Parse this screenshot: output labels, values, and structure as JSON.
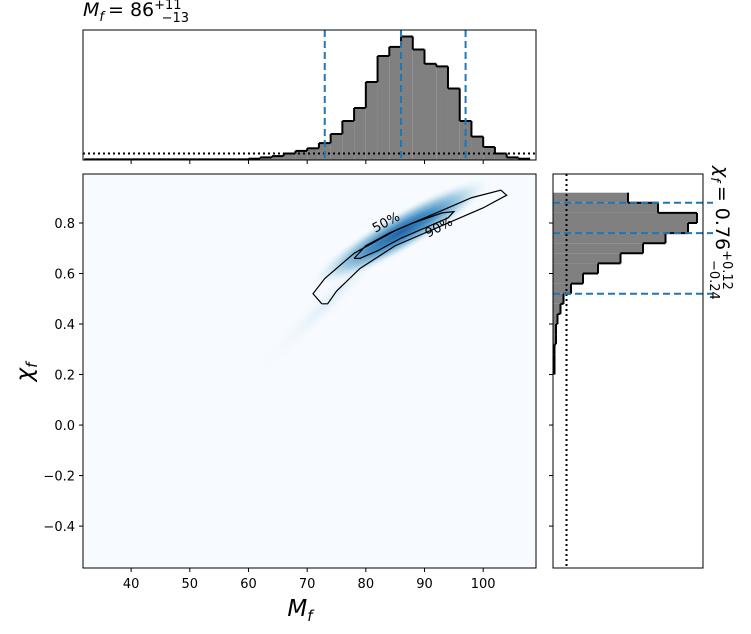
{
  "chart_data": [
    {
      "type": "histogram",
      "orientation": "vertical",
      "title": {
        "symbol": "M",
        "subscript": "f",
        "value": "= 86",
        "upper": "+11",
        "lower": "−13"
      },
      "bins": [
        32,
        34,
        36,
        38,
        40,
        42,
        44,
        46,
        48,
        50,
        52,
        54,
        56,
        58,
        60,
        62,
        64,
        66,
        68,
        70,
        72,
        74,
        76,
        78,
        80,
        82,
        84,
        86,
        88,
        90,
        92,
        94,
        96,
        98,
        100,
        102,
        104,
        106,
        108
      ],
      "values": [
        0.005,
        0.005,
        0.005,
        0.005,
        0.005,
        0.005,
        0.005,
        0.005,
        0.005,
        0.005,
        0.005,
        0.005,
        0.005,
        0.005,
        0.01,
        0.02,
        0.03,
        0.05,
        0.07,
        0.09,
        0.13,
        0.2,
        0.3,
        0.4,
        0.6,
        0.8,
        0.87,
        0.95,
        0.85,
        0.74,
        0.72,
        0.55,
        0.3,
        0.18,
        0.1,
        0.05,
        0.02,
        0.01
      ],
      "color": "#808080",
      "quantiles": [
        73,
        86,
        97
      ],
      "quantile_color": "#1f77b4",
      "prior_level": 0.05,
      "xlim": [
        31.8,
        109
      ],
      "xticks": [
        40,
        50,
        60,
        70,
        80,
        90,
        100
      ],
      "ylim": [
        0,
        1
      ]
    },
    {
      "type": "contour",
      "xlabel": {
        "symbol": "M",
        "subscript": "f"
      },
      "ylabel": {
        "symbol": "χ",
        "subscript": "f"
      },
      "xlim": [
        31.8,
        109
      ],
      "ylim": [
        -0.566,
        0.994
      ],
      "xticks": [
        40,
        50,
        60,
        70,
        80,
        90,
        100
      ],
      "yticks": [
        {
          "value": -0.4,
          "label": "−0.4"
        },
        {
          "value": -0.2,
          "label": "−0.2"
        },
        {
          "value": 0,
          "label": "0.0"
        },
        0.2,
        0.4,
        0.6,
        0.8
      ],
      "contours": [
        {
          "label": "90%",
          "label_x": 92.5,
          "label_y": 0.78,
          "x": [
            72.5,
            71,
            73,
            78,
            85,
            92,
            98,
            103,
            104,
            100,
            93,
            85,
            79,
            75,
            73.5,
            72.5
          ],
          "y": [
            0.48,
            0.52,
            0.58,
            0.68,
            0.77,
            0.84,
            0.9,
            0.93,
            0.91,
            0.86,
            0.79,
            0.71,
            0.62,
            0.53,
            0.48,
            0.48
          ]
        },
        {
          "label": "50%",
          "label_x": 83.5,
          "label_y": 0.8,
          "x": [
            78,
            80,
            84,
            88,
            93,
            95,
            94,
            90,
            86,
            82,
            79,
            78
          ],
          "y": [
            0.66,
            0.71,
            0.76,
            0.8,
            0.84,
            0.845,
            0.82,
            0.78,
            0.74,
            0.69,
            0.66,
            0.66
          ]
        }
      ]
    },
    {
      "type": "histogram",
      "orientation": "horizontal",
      "title": {
        "symbol": "χ",
        "subscript": "f",
        "value": "= 0.76",
        "upper": "+0.12",
        "lower": "−0.24"
      },
      "bins": [
        0.2,
        0.24,
        0.28,
        0.32,
        0.36,
        0.4,
        0.44,
        0.48,
        0.52,
        0.56,
        0.6,
        0.64,
        0.68,
        0.72,
        0.76,
        0.8,
        0.84,
        0.88,
        0.92
      ],
      "values": [
        0.01,
        0.01,
        0.01,
        0.02,
        0.02,
        0.03,
        0.05,
        0.07,
        0.12,
        0.2,
        0.3,
        0.45,
        0.6,
        0.75,
        0.9,
        0.96,
        0.7,
        0.5
      ],
      "color": "#808080",
      "quantiles": [
        0.52,
        0.76,
        0.88
      ],
      "quantile_color": "#1f77b4",
      "prior_level": 0.09,
      "xlim": [
        0,
        1
      ],
      "ylim": [
        -0.566,
        0.994
      ],
      "yticks": [
        -0.4,
        -0.2,
        0,
        0.2,
        0.4,
        0.6,
        0.8
      ]
    }
  ]
}
